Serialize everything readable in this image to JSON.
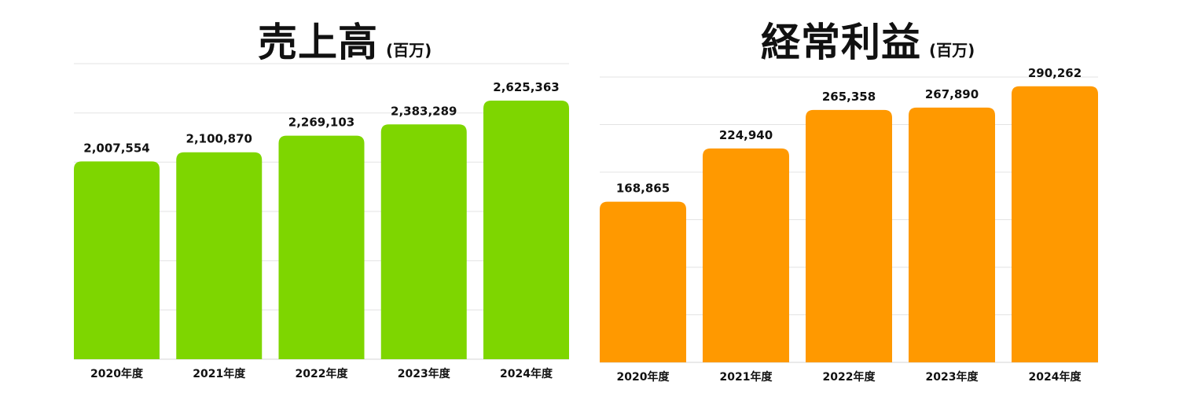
{
  "chart_data": [
    {
      "type": "bar",
      "title": "売上高",
      "subtitle": "(百万)",
      "categories": [
        "2020年度",
        "2021年度",
        "2022年度",
        "2023年度",
        "2024年度"
      ],
      "values": [
        2007554,
        2100870,
        2269103,
        2383289,
        2625363
      ],
      "value_labels": [
        "2,007,554",
        "2,100,870",
        "2,269,103",
        "2,383,289",
        "2,625,363"
      ],
      "ylim": [
        0,
        3000000
      ],
      "grid": true,
      "legend": "none",
      "color": "#7ed600"
    },
    {
      "type": "bar",
      "title": "経常利益",
      "subtitle": "(百万)",
      "categories": [
        "2020年度",
        "2021年度",
        "2022年度",
        "2023年度",
        "2024年度"
      ],
      "values": [
        168865,
        224940,
        265358,
        267890,
        290262
      ],
      "value_labels": [
        "168,865",
        "224,940",
        "265,358",
        "267,890",
        "290,262"
      ],
      "ylim": [
        0,
        300000
      ],
      "grid": true,
      "legend": "none",
      "color": "#ff9900"
    }
  ]
}
